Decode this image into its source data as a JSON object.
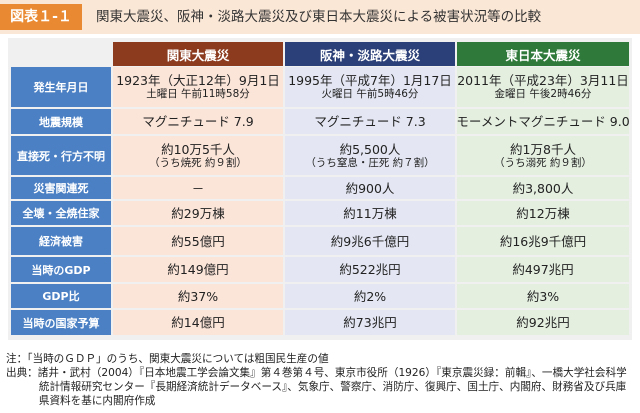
{
  "header": {
    "label": "図表１-１",
    "title": "関東大震災、阪神・淡路大震災及び東日本大震災による被害状況等の比較"
  },
  "table": {
    "columns": [
      "関東大震災",
      "阪神・淡路大震災",
      "東日本大震災"
    ],
    "rows": [
      [
        [
          "発生年月日"
        ],
        [
          "1923年（大正12年）9月1日",
          "土曜日 午前11時58分"
        ],
        [
          "1995年（平成7年）1月17日",
          "火曜日 午前5時46分"
        ],
        [
          "2011年（平成23年）3月11日",
          "金曜日 午後2時46分"
        ]
      ],
      [
        [
          "地震規模"
        ],
        [
          "マグニチュード 7.9"
        ],
        [
          "マグニチュード 7.3"
        ],
        [
          "モーメントマグニチュード 9.0"
        ]
      ],
      [
        [
          "直接死・行方不明"
        ],
        [
          "約10万5千人",
          "（うち焼死 約９割）"
        ],
        [
          "約5,500人",
          "（うち窒息・圧死 約７割）"
        ],
        [
          "約1万8千人",
          "（うち溺死 約９割）"
        ]
      ],
      [
        [
          "災害関連死"
        ],
        [
          "－"
        ],
        [
          "約900人"
        ],
        [
          "約3,800人"
        ]
      ],
      [
        [
          "全壊・全焼住家"
        ],
        [
          "約29万棟"
        ],
        [
          "約11万棟"
        ],
        [
          "約12万棟"
        ]
      ],
      [
        [
          "経済被害"
        ],
        [
          "約55億円"
        ],
        [
          "約9兆6千億円"
        ],
        [
          "約16兆9千億円"
        ]
      ],
      [
        [
          "当時のGDP"
        ],
        [
          "約149億円"
        ],
        [
          "約522兆円"
        ],
        [
          "約497兆円"
        ]
      ],
      [
        [
          "GDP比"
        ],
        [
          "約37%"
        ],
        [
          "約2%"
        ],
        [
          "約3%"
        ]
      ],
      [
        [
          "当時の国家予算"
        ],
        [
          "約14億円"
        ],
        [
          "約73兆円"
        ],
        [
          "約92兆円"
        ]
      ]
    ]
  },
  "notes": [
    "注：「当時のＧＤＰ」のうち、関東大震災については粗国民生産の値",
    "出典：諸井・武村（2004）『日本地震工学会論文集』第４巻第４号、東京市役所（1926）『東京震災録：前輯』、一橋大学社会科学統計情報研究センター『長期経済統計データベース』、気象庁、警察庁、消防庁、復興庁、国土庁、内閣府、財務省及び兵庫県資料を基に内閣府作成"
  ]
}
